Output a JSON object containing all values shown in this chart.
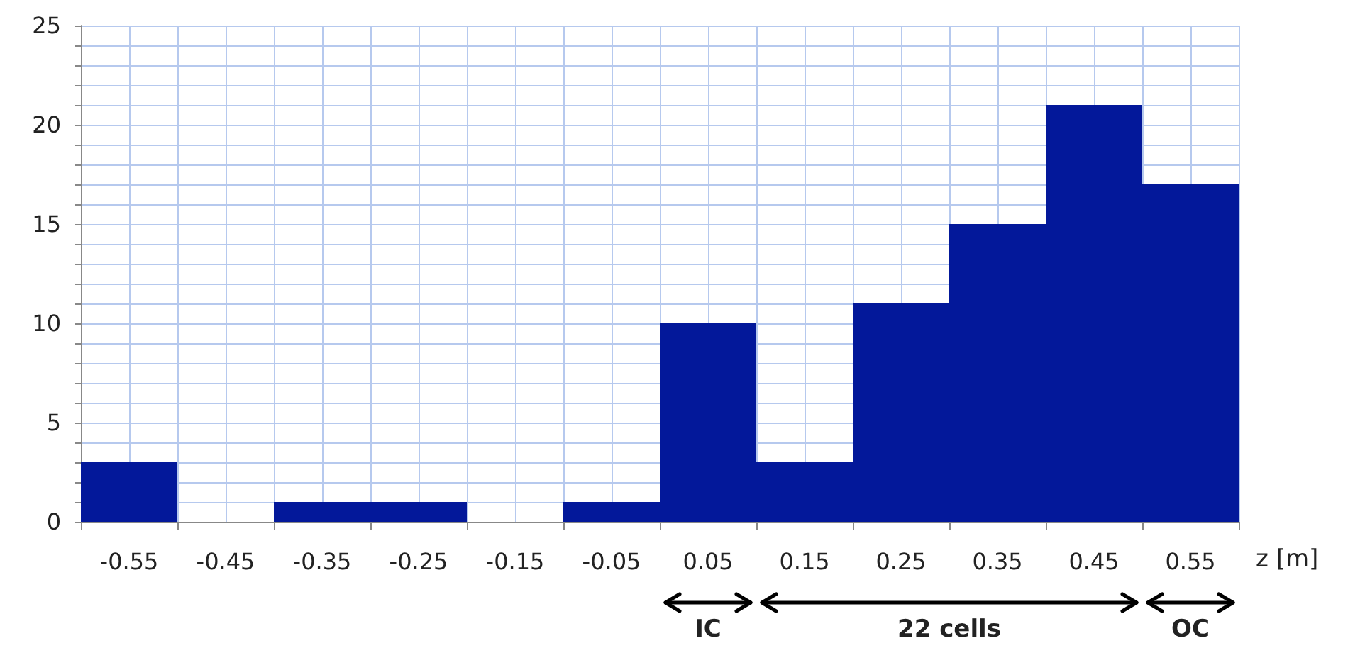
{
  "chart_data": {
    "type": "bar",
    "xlabel": "z [m]",
    "categories": [
      "-0.55",
      "-0.45",
      "-0.35",
      "-0.25",
      "-0.15",
      "-0.05",
      "0.05",
      "0.15",
      "0.25",
      "0.35",
      "0.45",
      "0.55"
    ],
    "values": [
      3,
      0,
      1,
      1,
      0,
      1,
      10,
      3,
      11,
      15,
      21,
      17
    ],
    "color": "#03189a",
    "ylim": [
      0,
      25
    ],
    "yticks": [
      0,
      {
        "value": 1,
        "label": null
      },
      {
        "value": 2,
        "label": null
      },
      {
        "value": 3,
        "label": null
      },
      {
        "value": 4,
        "label": null
      },
      5,
      {
        "value": 6,
        "label": null
      },
      {
        "value": 7,
        "label": null
      },
      {
        "value": 8,
        "label": null
      },
      {
        "value": 9,
        "label": null
      },
      10,
      {
        "value": 11,
        "label": null
      },
      {
        "value": 12,
        "label": null
      },
      {
        "value": 13,
        "label": null
      },
      {
        "value": 14,
        "label": null
      },
      15,
      {
        "value": 16,
        "label": null
      },
      {
        "value": 17,
        "label": null
      },
      {
        "value": 18,
        "label": null
      },
      {
        "value": 19,
        "label": null
      },
      20,
      {
        "value": 21,
        "label": null
      },
      {
        "value": 22,
        "label": null
      },
      {
        "value": 23,
        "label": null
      },
      {
        "value": 24,
        "label": null
      },
      25
    ],
    "grid": true,
    "annotations": [
      "IC",
      "22 cells",
      "OC"
    ]
  }
}
